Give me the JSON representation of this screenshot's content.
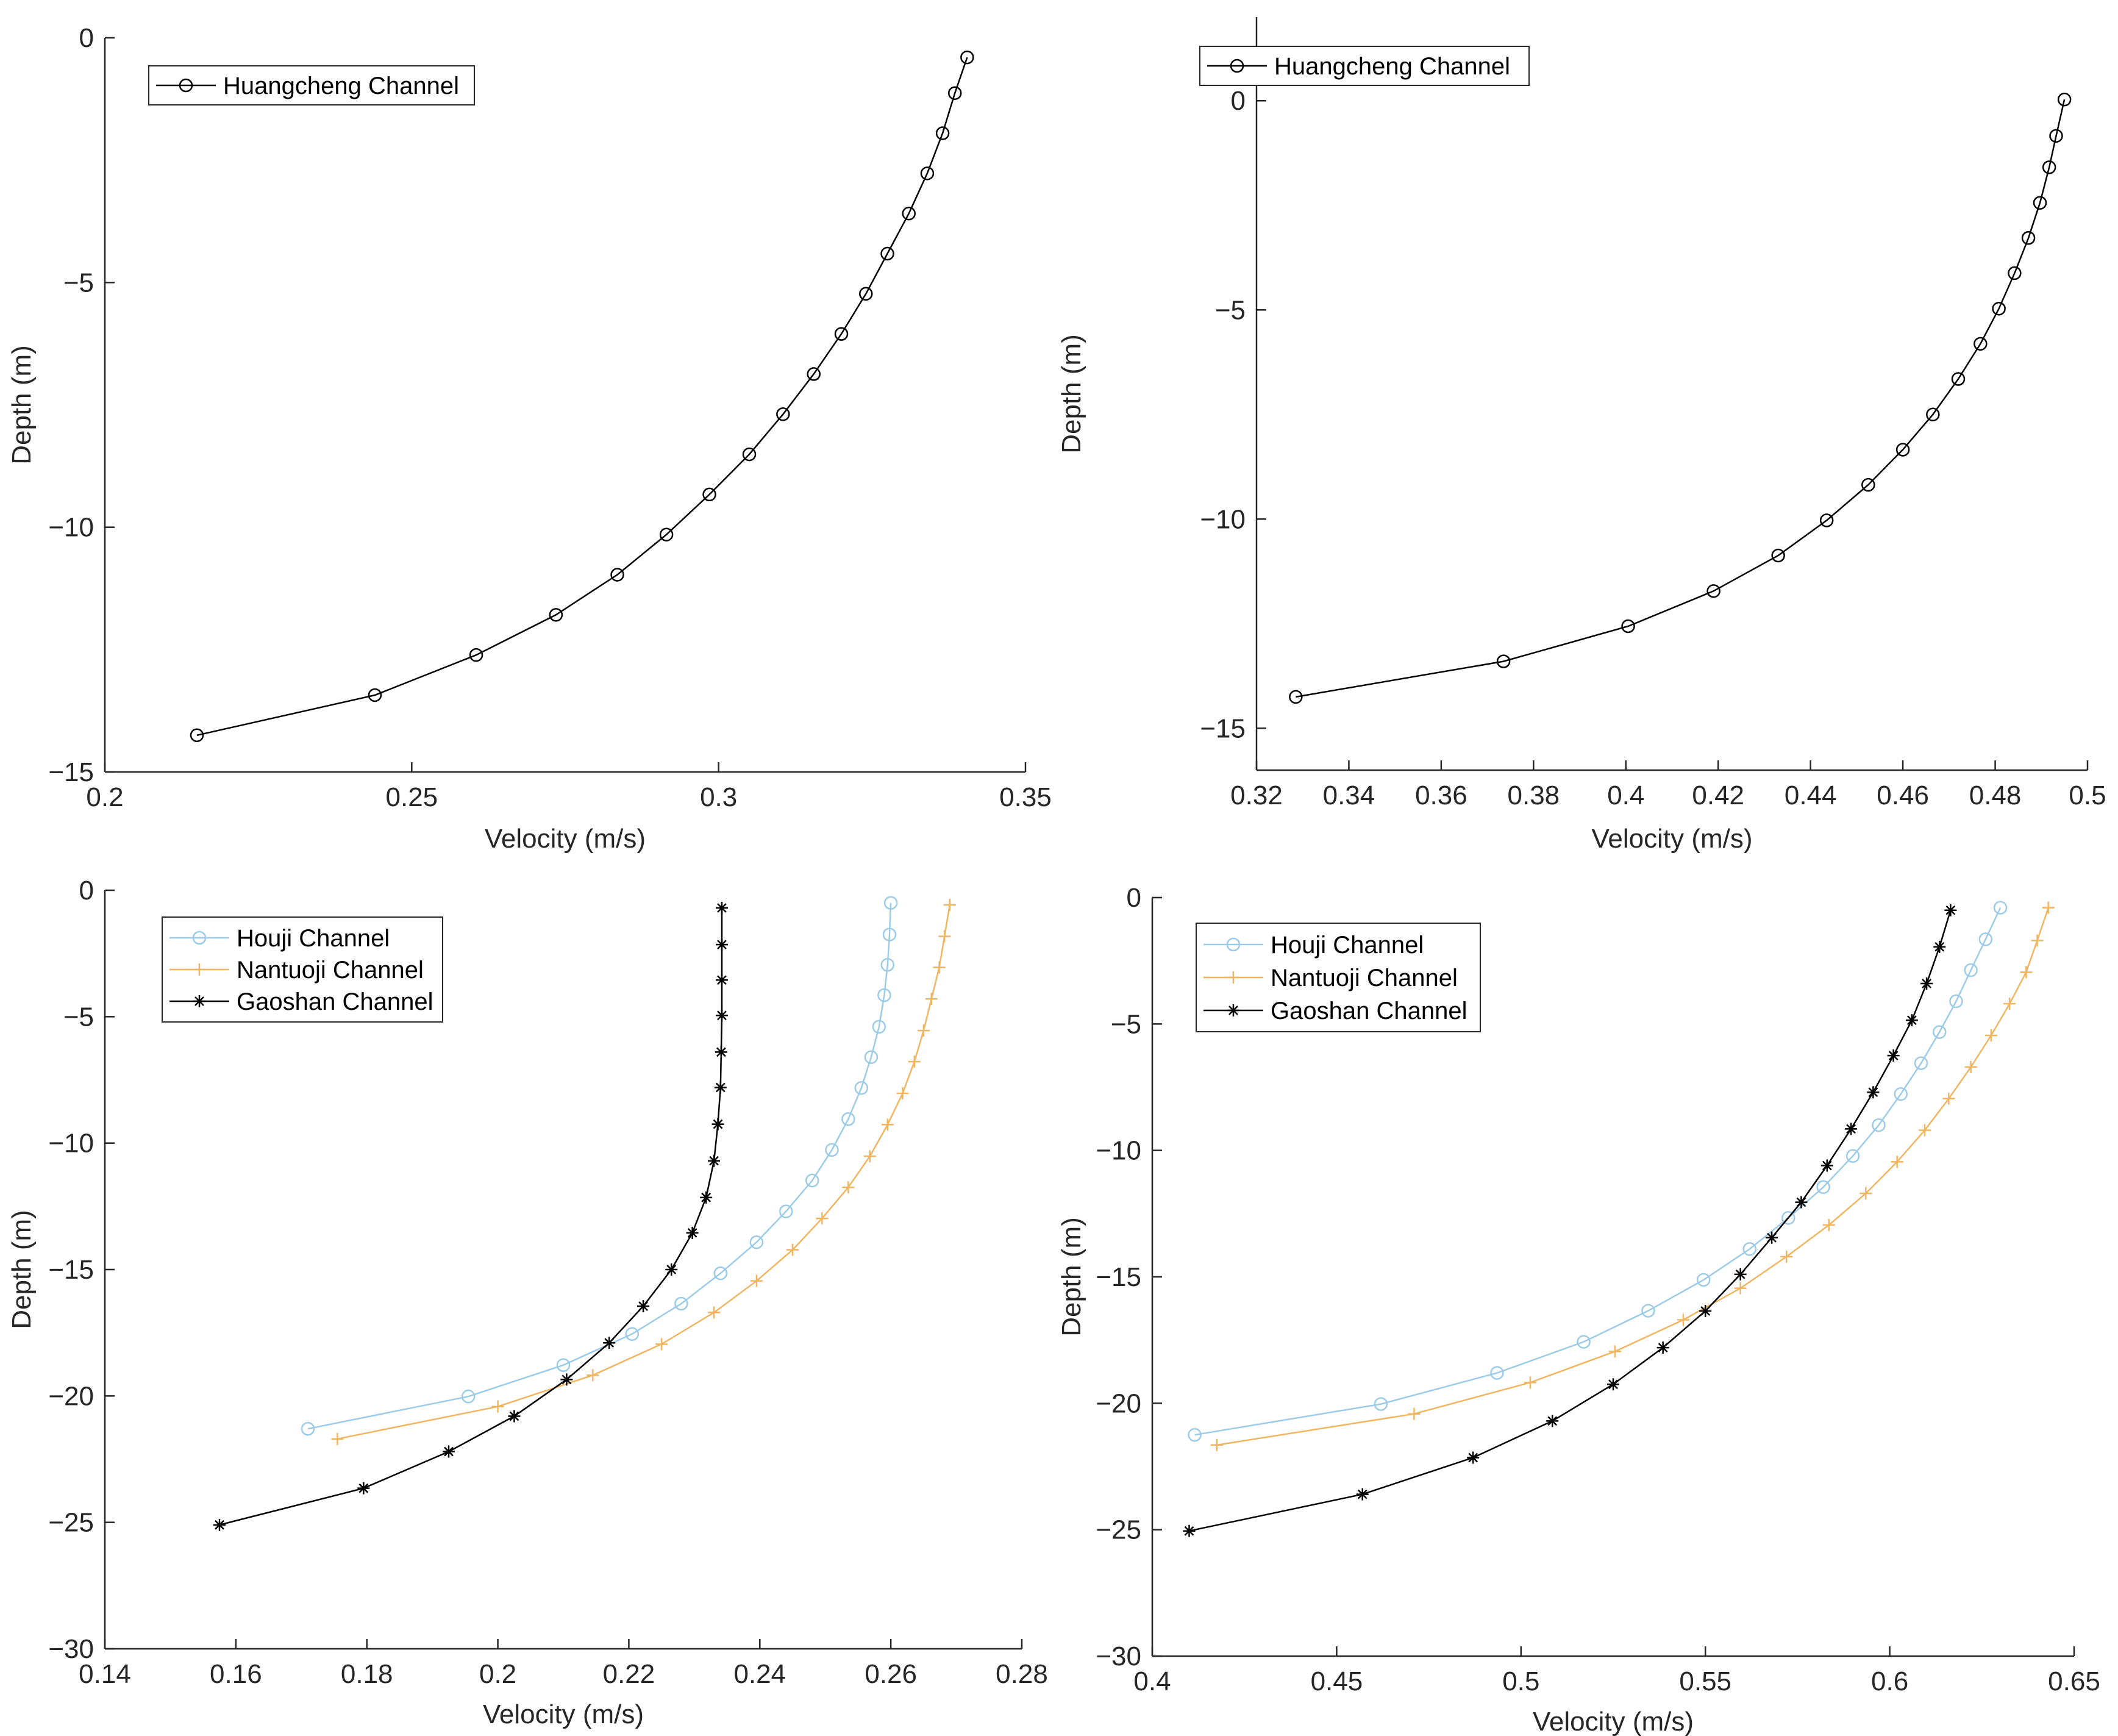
{
  "chart_data": [
    {
      "type": "line",
      "xlabel": "Velocity (m/s)",
      "ylabel": "Depth (m)",
      "xlim": [
        0.2,
        0.35
      ],
      "ylim": [
        -15,
        0
      ],
      "xticks": [
        "0.2",
        "0.25",
        "0.3",
        "0.35"
      ],
      "xtick_values": [
        0.2,
        0.25,
        0.3,
        0.35
      ],
      "yticks": [
        "0",
        "−5",
        "−10",
        "−15"
      ],
      "ytick_values": [
        0,
        -5,
        -10,
        -15
      ],
      "legend_position": "top-left",
      "series": [
        {
          "name": "Huangcheng Channel",
          "color": "#000000",
          "marker": "circle",
          "points": [
            [
              0.215,
              -14.25
            ],
            [
              0.244,
              -13.43
            ],
            [
              0.2605,
              -12.61
            ],
            [
              0.2735,
              -11.79
            ],
            [
              0.2835,
              -10.97
            ],
            [
              0.2915,
              -10.15
            ],
            [
              0.2985,
              -9.33
            ],
            [
              0.305,
              -8.51
            ],
            [
              0.3105,
              -7.69
            ],
            [
              0.3155,
              -6.87
            ],
            [
              0.32,
              -6.05
            ],
            [
              0.324,
              -5.23
            ],
            [
              0.3275,
              -4.41
            ],
            [
              0.331,
              -3.59
            ],
            [
              0.334,
              -2.77
            ],
            [
              0.3365,
              -1.95
            ],
            [
              0.3385,
              -1.13
            ],
            [
              0.3405,
              -0.4
            ]
          ]
        }
      ]
    },
    {
      "type": "line",
      "xlabel": "Velocity (m/s)",
      "ylabel": "Depth (m)",
      "xlim": [
        0.32,
        0.5
      ],
      "ylim": [
        -16,
        2
      ],
      "xticks": [
        "0.32",
        "0.34",
        "0.36",
        "0.38",
        "0.4",
        "0.42",
        "0.44",
        "0.46",
        "0.48",
        "0.5"
      ],
      "xtick_values": [
        0.32,
        0.34,
        0.36,
        0.38,
        0.4,
        0.42,
        0.44,
        0.46,
        0.48,
        0.5
      ],
      "yticks": [
        "0",
        "−5",
        "−10",
        "−15"
      ],
      "ytick_values": [
        0,
        -5,
        -10,
        -15
      ],
      "legend_position": "top-left",
      "series": [
        {
          "name": "Huangcheng Channel",
          "color": "#000000",
          "marker": "circle",
          "points": [
            [
              0.3285,
              -14.25
            ],
            [
              0.3735,
              -13.4
            ],
            [
              0.4005,
              -12.56
            ],
            [
              0.419,
              -11.72
            ],
            [
              0.433,
              -10.87
            ],
            [
              0.4435,
              -10.03
            ],
            [
              0.4525,
              -9.18
            ],
            [
              0.46,
              -8.34
            ],
            [
              0.4665,
              -7.5
            ],
            [
              0.472,
              -6.65
            ],
            [
              0.4768,
              -5.81
            ],
            [
              0.4808,
              -4.97
            ],
            [
              0.4842,
              -4.12
            ],
            [
              0.4872,
              -3.28
            ],
            [
              0.4897,
              -2.44
            ],
            [
              0.4917,
              -1.59
            ],
            [
              0.4932,
              -0.84
            ],
            [
              0.495,
              0.03
            ]
          ]
        }
      ]
    },
    {
      "type": "line",
      "xlabel": "Velocity (m/s)",
      "ylabel": "Depth (m)",
      "xlim": [
        0.14,
        0.28
      ],
      "ylim": [
        -30,
        0
      ],
      "xticks": [
        "0.14",
        "0.16",
        "0.18",
        "0.2",
        "0.22",
        "0.24",
        "0.26",
        "0.28"
      ],
      "xtick_values": [
        0.14,
        0.16,
        0.18,
        0.2,
        0.22,
        0.24,
        0.26,
        0.28
      ],
      "yticks": [
        "0",
        "−5",
        "−10",
        "−15",
        "−20",
        "−25",
        "−30"
      ],
      "ytick_values": [
        0,
        -5,
        -10,
        -15,
        -20,
        -25,
        -30
      ],
      "legend_position": "top-left",
      "series": [
        {
          "name": "Houji Channel",
          "color": "#9ccbe8",
          "marker": "circle",
          "points": [
            [
              0.171,
              -21.3
            ],
            [
              0.1955,
              -20.02
            ],
            [
              0.21,
              -18.78
            ],
            [
              0.2205,
              -17.55
            ],
            [
              0.228,
              -16.35
            ],
            [
              0.234,
              -15.15
            ],
            [
              0.2395,
              -13.92
            ],
            [
              0.244,
              -12.7
            ],
            [
              0.248,
              -11.48
            ],
            [
              0.251,
              -10.27
            ],
            [
              0.2535,
              -9.05
            ],
            [
              0.2555,
              -7.82
            ],
            [
              0.257,
              -6.6
            ],
            [
              0.2582,
              -5.4
            ],
            [
              0.259,
              -4.15
            ],
            [
              0.2595,
              -2.95
            ],
            [
              0.2598,
              -1.75
            ],
            [
              0.26,
              -0.5
            ]
          ]
        },
        {
          "name": "Nantuoji Channel",
          "color": "#f0b560",
          "marker": "plus",
          "points": [
            [
              0.1755,
              -21.7
            ],
            [
              0.2,
              -20.42
            ],
            [
              0.2145,
              -19.18
            ],
            [
              0.225,
              -17.95
            ],
            [
              0.233,
              -16.7
            ],
            [
              0.2395,
              -15.45
            ],
            [
              0.245,
              -14.22
            ],
            [
              0.2495,
              -12.98
            ],
            [
              0.2535,
              -11.75
            ],
            [
              0.2568,
              -10.52
            ],
            [
              0.2595,
              -9.27
            ],
            [
              0.2618,
              -8.03
            ],
            [
              0.2636,
              -6.78
            ],
            [
              0.265,
              -5.55
            ],
            [
              0.2662,
              -4.3
            ],
            [
              0.2674,
              -3.05
            ],
            [
              0.2682,
              -1.82
            ],
            [
              0.269,
              -0.58
            ]
          ]
        },
        {
          "name": "Gaoshan Channel",
          "color": "#000000",
          "marker": "asterisk",
          "points": [
            [
              0.1575,
              -25.1
            ],
            [
              0.1795,
              -23.65
            ],
            [
              0.1925,
              -22.2
            ],
            [
              0.2025,
              -20.8
            ],
            [
              0.2105,
              -19.35
            ],
            [
              0.217,
              -17.9
            ],
            [
              0.2222,
              -16.45
            ],
            [
              0.2265,
              -15.0
            ],
            [
              0.2297,
              -13.55
            ],
            [
              0.2318,
              -12.15
            ],
            [
              0.233,
              -10.7
            ],
            [
              0.2336,
              -9.25
            ],
            [
              0.234,
              -7.8
            ],
            [
              0.2341,
              -6.4
            ],
            [
              0.2342,
              -4.95
            ],
            [
              0.2342,
              -3.55
            ],
            [
              0.2342,
              -2.15
            ],
            [
              0.2342,
              -0.7
            ]
          ]
        }
      ]
    },
    {
      "type": "line",
      "xlabel": "Velocity (m/s)",
      "ylabel": "Depth (m)",
      "xlim": [
        0.4,
        0.65
      ],
      "ylim": [
        -30,
        0
      ],
      "xticks": [
        "0.4",
        "0.45",
        "0.5",
        "0.55",
        "0.6",
        "0.65"
      ],
      "xtick_values": [
        0.4,
        0.45,
        0.5,
        0.55,
        0.6,
        0.65
      ],
      "yticks": [
        "0",
        "−5",
        "−10",
        "−15",
        "−20",
        "−25",
        "−30"
      ],
      "ytick_values": [
        0,
        -5,
        -10,
        -15,
        -20,
        -25,
        -30
      ],
      "legend_position": "top-left",
      "series": [
        {
          "name": "Houji Channel",
          "color": "#9ccbe8",
          "marker": "circle",
          "points": [
            [
              0.4115,
              -21.25
            ],
            [
              0.462,
              -20.03
            ],
            [
              0.4935,
              -18.8
            ],
            [
              0.517,
              -17.57
            ],
            [
              0.5345,
              -16.34
            ],
            [
              0.5495,
              -15.12
            ],
            [
              0.562,
              -13.9
            ],
            [
              0.5725,
              -12.67
            ],
            [
              0.582,
              -11.45
            ],
            [
              0.59,
              -10.22
            ],
            [
              0.597,
              -9.0
            ],
            [
              0.603,
              -7.77
            ],
            [
              0.6085,
              -6.55
            ],
            [
              0.6135,
              -5.32
            ],
            [
              0.618,
              -4.1
            ],
            [
              0.622,
              -2.87
            ],
            [
              0.626,
              -1.65
            ],
            [
              0.63,
              -0.4
            ]
          ]
        },
        {
          "name": "Nantuoji Channel",
          "color": "#f0b560",
          "marker": "plus",
          "points": [
            [
              0.4175,
              -21.65
            ],
            [
              0.471,
              -20.42
            ],
            [
              0.5025,
              -19.18
            ],
            [
              0.5255,
              -17.95
            ],
            [
              0.544,
              -16.7
            ],
            [
              0.5595,
              -15.45
            ],
            [
              0.572,
              -14.2
            ],
            [
              0.5835,
              -12.95
            ],
            [
              0.5935,
              -11.7
            ],
            [
              0.602,
              -10.45
            ],
            [
              0.6095,
              -9.2
            ],
            [
              0.616,
              -7.95
            ],
            [
              0.622,
              -6.7
            ],
            [
              0.6275,
              -5.45
            ],
            [
              0.6325,
              -4.2
            ],
            [
              0.637,
              -2.95
            ],
            [
              0.64,
              -1.7
            ],
            [
              0.643,
              -0.4
            ]
          ]
        },
        {
          "name": "Gaoshan Channel",
          "color": "#000000",
          "marker": "asterisk",
          "points": [
            [
              0.41,
              -25.05
            ],
            [
              0.457,
              -23.6
            ],
            [
              0.487,
              -22.15
            ],
            [
              0.5085,
              -20.7
            ],
            [
              0.525,
              -19.25
            ],
            [
              0.5385,
              -17.8
            ],
            [
              0.55,
              -16.35
            ],
            [
              0.5595,
              -14.9
            ],
            [
              0.568,
              -13.45
            ],
            [
              0.576,
              -12.05
            ],
            [
              0.583,
              -10.6
            ],
            [
              0.5895,
              -9.15
            ],
            [
              0.5955,
              -7.7
            ],
            [
              0.601,
              -6.25
            ],
            [
              0.606,
              -4.85
            ],
            [
              0.61,
              -3.4
            ],
            [
              0.6135,
              -1.95
            ],
            [
              0.6165,
              -0.5
            ]
          ]
        }
      ]
    }
  ]
}
